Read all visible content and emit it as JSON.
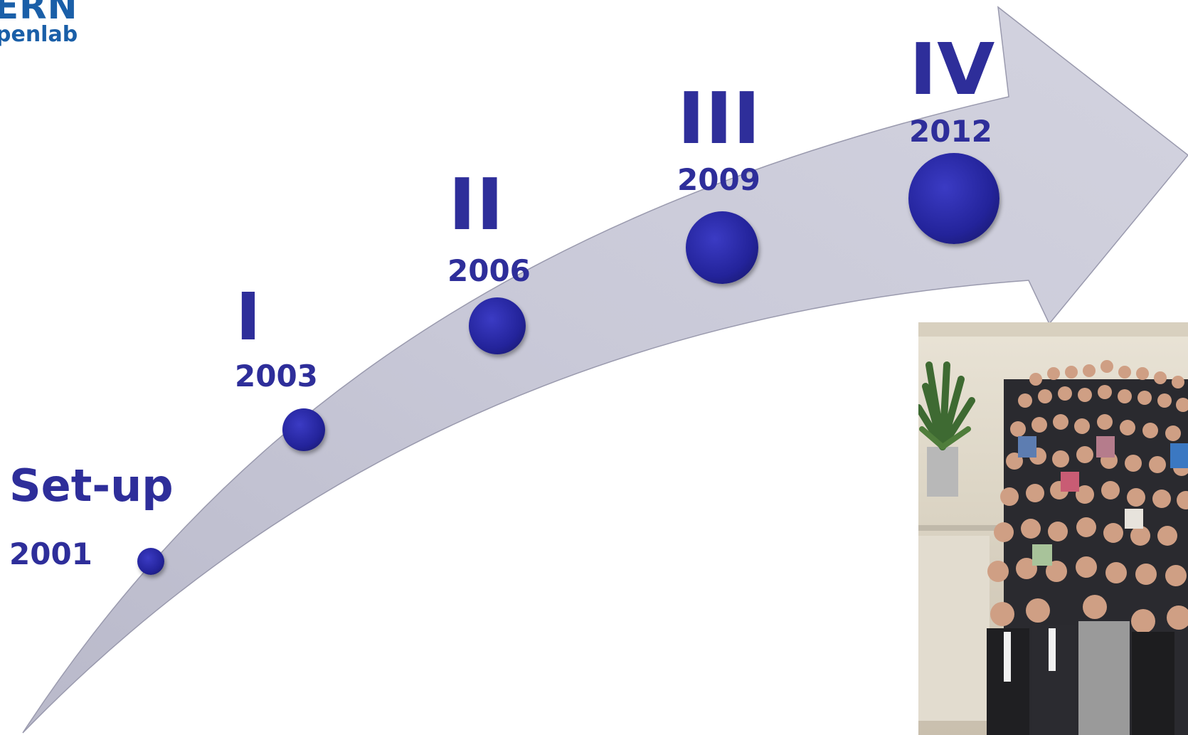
{
  "logo": {
    "line1": "ERN",
    "line2": "penlab"
  },
  "colors": {
    "accent": "#2e2e9a",
    "logo": "#1a5fa8",
    "arrow_fill": "#c6c6d6",
    "arrow_edge": "#9a9aae",
    "milestone_dot": "#23239a"
  },
  "milestones": [
    {
      "phase": "Set-up",
      "year": "2001"
    },
    {
      "phase": "I",
      "year": "2003"
    },
    {
      "phase": "II",
      "year": "2006"
    },
    {
      "phase": "III",
      "year": "2009"
    },
    {
      "phase": "IV",
      "year": "2012"
    }
  ],
  "photo": {
    "description_icon": "group-photo"
  }
}
